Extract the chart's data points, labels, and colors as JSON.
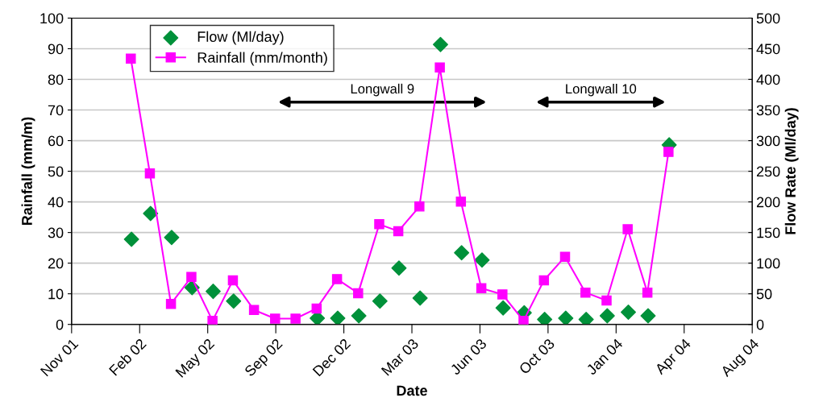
{
  "chart_data": {
    "type": "line",
    "xlabel": "Date",
    "ylabel": "Rainfall (mm/m)",
    "y2label": "Flow Rate (Ml/day)",
    "series": [
      {
        "name": "Flow (Ml/day)",
        "type": "scatter",
        "axis": "y2",
        "color": "#00913a",
        "marker": "diamond",
        "x": [
          "2002-02-01",
          "2002-03-01",
          "2002-04-01",
          "2002-05-01",
          "2002-06-01",
          "2002-07-01",
          "2002-08-01",
          "2002-09-01",
          "2002-10-01",
          "2002-11-01",
          "2002-12-01",
          "2003-01-01",
          "2003-02-01",
          "2003-03-01",
          "2003-04-01",
          "2003-05-01",
          "2003-06-01",
          "2003-07-01",
          "2003-08-01",
          "2003-09-01",
          "2003-10-01",
          "2003-11-01",
          "2003-12-01",
          "2004-01-01",
          "2004-02-01",
          "2004-03-01",
          "2004-04-01"
        ],
        "values": [
          139,
          181,
          142,
          60,
          54,
          38,
          null,
          null,
          null,
          10,
          10,
          14,
          38,
          92,
          43,
          457,
          117,
          105,
          27,
          19,
          8,
          10,
          8,
          14,
          20,
          14,
          293
        ]
      },
      {
        "name": "Rainfall (mm/month)",
        "type": "line",
        "color": "#ff00ff",
        "marker": "square",
        "x": [
          "2002-01-31",
          "2002-02-28",
          "2002-03-31",
          "2002-04-30",
          "2002-05-31",
          "2002-06-30",
          "2002-07-31",
          "2002-08-31",
          "2002-09-30",
          "2002-10-31",
          "2002-11-30",
          "2002-12-31",
          "2003-01-31",
          "2003-02-28",
          "2003-03-31",
          "2003-04-30",
          "2003-05-31",
          "2003-06-30",
          "2003-07-31",
          "2003-08-31",
          "2003-09-30",
          "2003-10-31",
          "2003-11-30",
          "2003-12-31",
          "2004-01-31",
          "2004-02-29",
          "2004-03-31"
        ],
        "values": [
          86.8,
          49.3,
          6.7,
          15.5,
          1.2,
          14.4,
          4.7,
          1.9,
          1.9,
          5.2,
          14.8,
          10.2,
          32.7,
          30.4,
          38.5,
          83.9,
          40.1,
          11.8,
          9.8,
          1.2,
          14.4,
          22.1,
          10.4,
          7.8,
          31.1,
          10.4,
          56.3
        ]
      }
    ],
    "xlim": [
      "2001-11-05",
      "2004-08-01"
    ],
    "xticks": [
      {
        "value": "2001-11-05",
        "label": "Nov 01"
      },
      {
        "value": "2002-02-13",
        "label": "Feb 02"
      },
      {
        "value": "2002-05-24",
        "label": "May 02"
      },
      {
        "value": "2002-09-01",
        "label": "Sep 02"
      },
      {
        "value": "2002-12-10",
        "label": "Dec 02"
      },
      {
        "value": "2003-03-20",
        "label": "Mar 03"
      },
      {
        "value": "2003-06-28",
        "label": "Jun 03"
      },
      {
        "value": "2003-10-06",
        "label": "Oct 03"
      },
      {
        "value": "2004-01-14",
        "label": "Jan 04"
      },
      {
        "value": "2004-04-23",
        "label": "Apr 04"
      },
      {
        "value": "2004-08-01",
        "label": "Aug 04"
      }
    ],
    "ylim": [
      0,
      100
    ],
    "yticks": [
      0,
      10,
      20,
      30,
      40,
      50,
      60,
      70,
      80,
      90,
      100
    ],
    "y2lim": [
      0,
      500
    ],
    "y2ticks": [
      0,
      50,
      100,
      150,
      200,
      250,
      300,
      350,
      400,
      450,
      500
    ],
    "annotations": [
      "Longwall 9",
      "Longwall 10"
    ],
    "grid": "y",
    "legend": "top left"
  }
}
